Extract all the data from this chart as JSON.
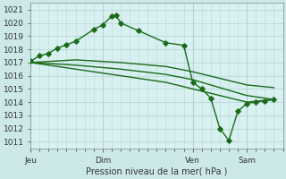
{
  "bg_color": "#cce8e8",
  "plot_bg_color": "#d8f0f0",
  "grid_color": "#b8d8d8",
  "line_color": "#1a6b1a",
  "marker_color": "#1a6b1a",
  "xlabel_text": "Pression niveau de la mer( hPa )",
  "ylim": [
    1010.5,
    1021.5
  ],
  "yticks": [
    1011,
    1012,
    1013,
    1014,
    1015,
    1016,
    1017,
    1018,
    1019,
    1020,
    1021
  ],
  "xlim": [
    0,
    28
  ],
  "xtick_positions": [
    0,
    8,
    18,
    24
  ],
  "xtick_labels": [
    "Jeu",
    "Dim",
    "Ven",
    "Sam"
  ],
  "series1_x": [
    0,
    1,
    2,
    3,
    4,
    5,
    7,
    8,
    9,
    9.5,
    10,
    12,
    15,
    17,
    18,
    19,
    20,
    21,
    22,
    23,
    24,
    25,
    26,
    27
  ],
  "series1_y": [
    1017.1,
    1017.5,
    1017.7,
    1018.1,
    1018.35,
    1018.6,
    1019.5,
    1019.85,
    1020.5,
    1020.55,
    1020.0,
    1019.4,
    1018.5,
    1018.3,
    1015.5,
    1015.0,
    1014.3,
    1012.0,
    1011.1,
    1013.3,
    1013.9,
    1014.0,
    1014.1,
    1014.2
  ],
  "series2_x": [
    0,
    5,
    10,
    15,
    18,
    21,
    24,
    27
  ],
  "series2_y": [
    1017.0,
    1017.2,
    1017.0,
    1016.7,
    1016.3,
    1015.8,
    1015.3,
    1015.1
  ],
  "series3_x": [
    0,
    5,
    10,
    15,
    18,
    21,
    24,
    27
  ],
  "series3_y": [
    1017.0,
    1016.8,
    1016.5,
    1016.1,
    1015.7,
    1015.1,
    1014.5,
    1014.2
  ],
  "series4_x": [
    0,
    5,
    10,
    15,
    18,
    21,
    24,
    27
  ],
  "series4_y": [
    1017.0,
    1016.5,
    1016.0,
    1015.5,
    1015.0,
    1014.5,
    1014.0,
    1014.2
  ]
}
